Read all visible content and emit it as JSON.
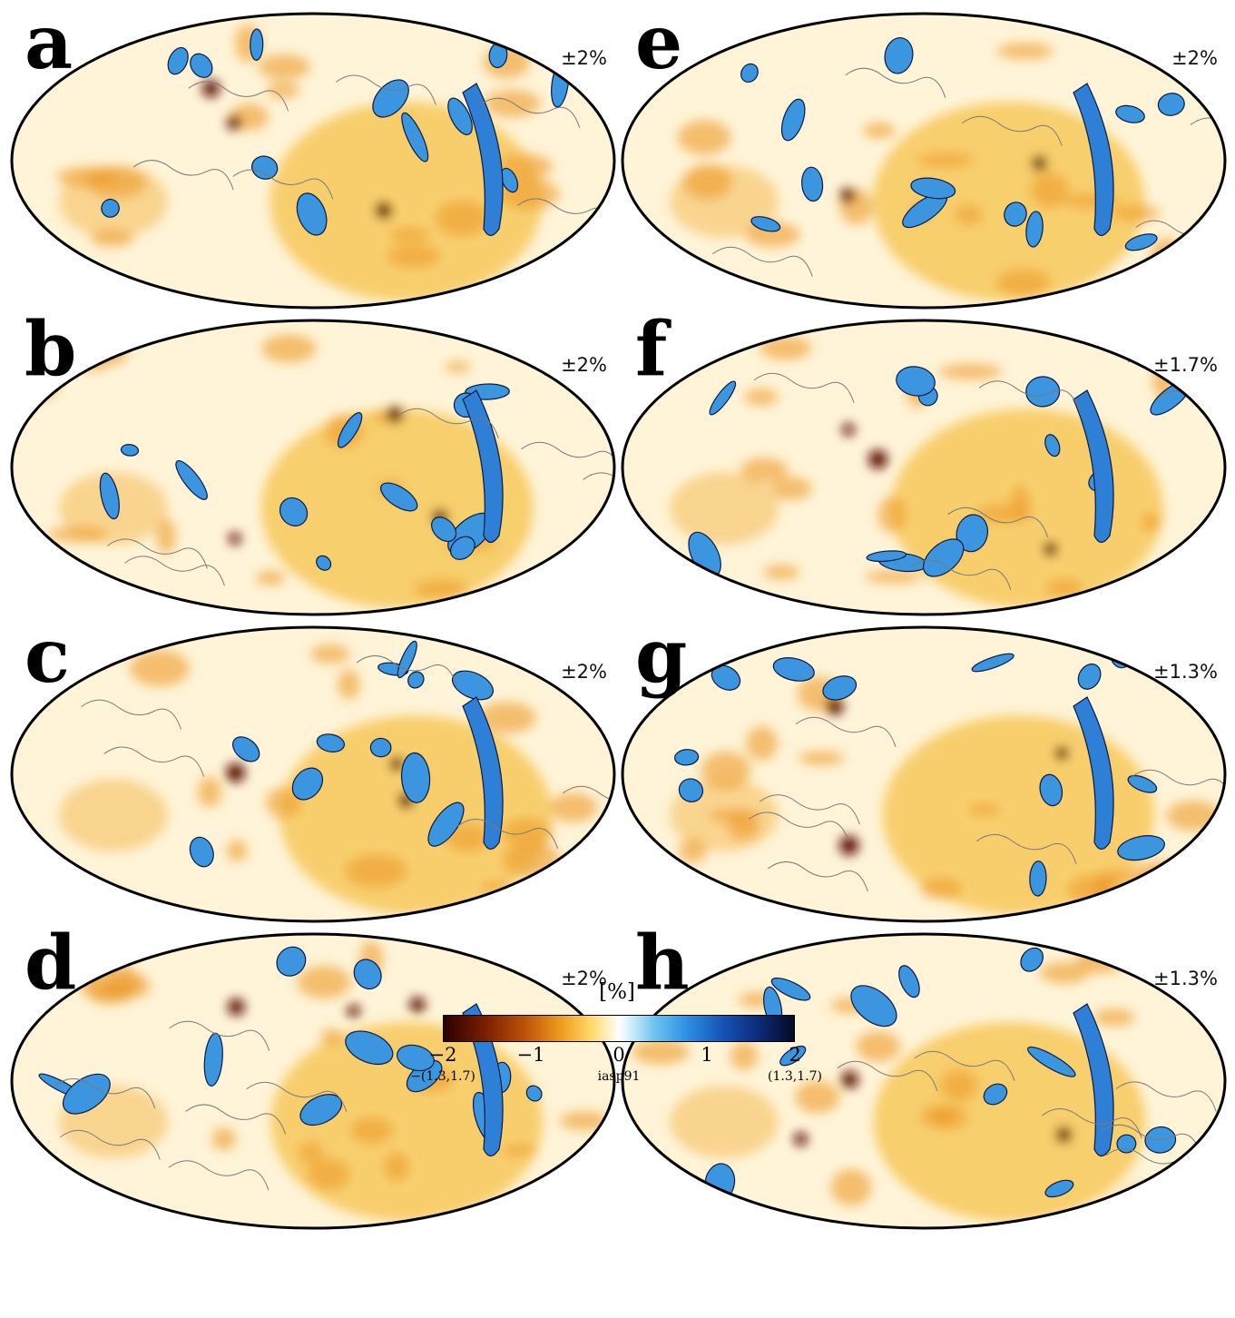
{
  "panels": [
    {
      "letter": "a",
      "scale": "±2%"
    },
    {
      "letter": "b",
      "scale": "±2%"
    },
    {
      "letter": "c",
      "scale": "±2%"
    },
    {
      "letter": "d",
      "scale": "±2%"
    },
    {
      "letter": "e",
      "scale": "±2%"
    },
    {
      "letter": "f",
      "scale": "±1.7%"
    },
    {
      "letter": "g",
      "scale": "±1.3%"
    },
    {
      "letter": "h",
      "scale": "±1.3%"
    }
  ],
  "colorbar": {
    "unit": "[%]",
    "ticks": [
      "−2",
      "−1",
      "0",
      "1",
      "2"
    ],
    "left_sub": "−(1.3,1.7)",
    "center_sub": "iasp91",
    "right_sub": "(1.3,1.7)",
    "colors": {
      "slow": "#2a0000",
      "mid_slow": "#f0a020",
      "zero": "#ffffff",
      "mid_fast": "#2a8ce0",
      "fast": "#050a24"
    }
  }
}
